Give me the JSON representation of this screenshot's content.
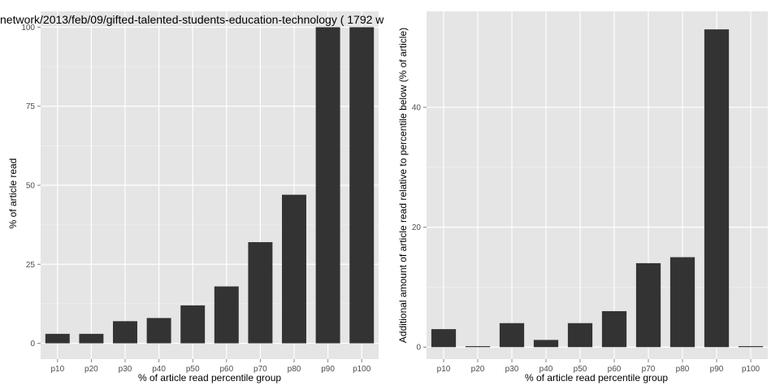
{
  "page_title": "network/2013/feb/09/gifted-talented-students-education-technology ( 1792 w",
  "chart_data": [
    {
      "type": "bar",
      "title": "network/2013/feb/09/gifted-talented-students-education-technology ( 1792 w",
      "xlabel": "% of article read percentile group",
      "ylabel": "% of article read",
      "categories": [
        "p10",
        "p20",
        "p30",
        "p40",
        "p50",
        "p60",
        "p70",
        "p80",
        "p90",
        "p100"
      ],
      "values": [
        3,
        3,
        7,
        8,
        12,
        18,
        32,
        47,
        100,
        100
      ],
      "ylim": [
        -5,
        105
      ],
      "yticks": [
        0,
        25,
        50,
        75,
        100
      ],
      "grid": true,
      "colors": {
        "panel": "#e5e5e5",
        "bar": "#333333",
        "grid": "#ffffff"
      }
    },
    {
      "type": "bar",
      "title": "",
      "xlabel": "% of article read percentile group",
      "ylabel": "Additional amount of article read relative to percentile below (% of article)",
      "categories": [
        "p10",
        "p20",
        "p30",
        "p40",
        "p50",
        "p60",
        "p70",
        "p80",
        "p90",
        "p100"
      ],
      "values": [
        3,
        0,
        4,
        1.2,
        4,
        6,
        14,
        15,
        53,
        0
      ],
      "ylim": [
        -2,
        56
      ],
      "yticks": [
        0,
        20,
        40
      ],
      "grid": true,
      "colors": {
        "panel": "#e5e5e5",
        "bar": "#333333",
        "grid": "#ffffff"
      }
    }
  ]
}
